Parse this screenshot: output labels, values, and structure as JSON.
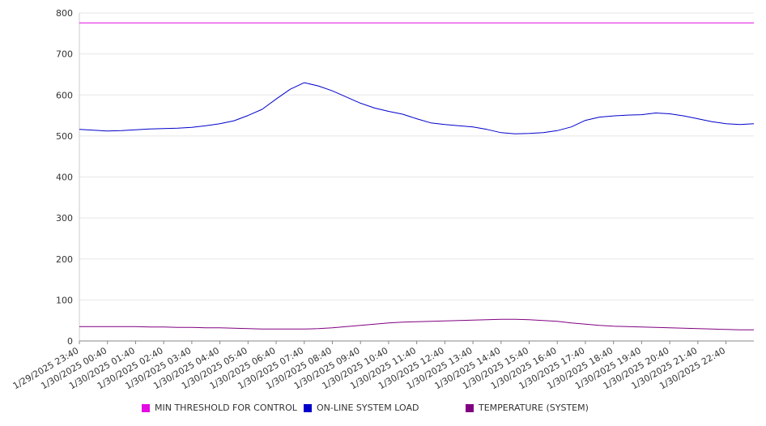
{
  "chart_data": {
    "type": "line",
    "title": "",
    "xlabel": "",
    "ylabel": "",
    "ylim": [
      0,
      800
    ],
    "yticks": [
      0,
      100,
      200,
      300,
      400,
      500,
      600,
      700,
      800
    ],
    "grid": true,
    "legend_position": "bottom",
    "x_tick_labels": [
      "1/29/2025 23:40",
      "1/30/2025 00:40",
      "1/30/2025 01:40",
      "1/30/2025 02:40",
      "1/30/2025 03:40",
      "1/30/2025 04:40",
      "1/30/2025 05:40",
      "1/30/2025 06:40",
      "1/30/2025 07:40",
      "1/30/2025 08:40",
      "1/30/2025 09:40",
      "1/30/2025 10:40",
      "1/30/2025 11:40",
      "1/30/2025 12:40",
      "1/30/2025 13:40",
      "1/30/2025 14:40",
      "1/30/2025 15:40",
      "1/30/2025 16:40",
      "1/30/2025 17:40",
      "1/30/2025 18:40",
      "1/30/2025 19:40",
      "1/30/2025 20:40",
      "1/30/2025 21:40",
      "1/30/2025 22:40"
    ],
    "x": [
      "1/29/2025 23:40",
      "1/30/2025 00:10",
      "1/30/2025 00:40",
      "1/30/2025 01:10",
      "1/30/2025 01:40",
      "1/30/2025 02:10",
      "1/30/2025 02:40",
      "1/30/2025 03:10",
      "1/30/2025 03:40",
      "1/30/2025 04:10",
      "1/30/2025 04:40",
      "1/30/2025 05:10",
      "1/30/2025 05:40",
      "1/30/2025 06:10",
      "1/30/2025 06:40",
      "1/30/2025 07:10",
      "1/30/2025 07:40",
      "1/30/2025 08:10",
      "1/30/2025 08:40",
      "1/30/2025 09:10",
      "1/30/2025 09:40",
      "1/30/2025 10:10",
      "1/30/2025 10:40",
      "1/30/2025 11:10",
      "1/30/2025 11:40",
      "1/30/2025 12:10",
      "1/30/2025 12:40",
      "1/30/2025 13:10",
      "1/30/2025 13:40",
      "1/30/2025 14:10",
      "1/30/2025 14:40",
      "1/30/2025 15:10",
      "1/30/2025 15:40",
      "1/30/2025 16:10",
      "1/30/2025 16:40",
      "1/30/2025 17:10",
      "1/30/2025 17:40",
      "1/30/2025 18:10",
      "1/30/2025 18:40",
      "1/30/2025 19:10",
      "1/30/2025 19:40",
      "1/30/2025 20:10",
      "1/30/2025 20:40",
      "1/30/2025 21:10",
      "1/30/2025 21:40",
      "1/30/2025 22:10",
      "1/30/2025 22:40",
      "1/30/2025 23:10",
      "1/30/2025 23:40"
    ],
    "series": [
      {
        "name": "MIN THRESHOLD FOR CONTROL",
        "color": "#e40ae4",
        "values": [
          776,
          776,
          776,
          776,
          776,
          776,
          776,
          776,
          776,
          776,
          776,
          776,
          776,
          776,
          776,
          776,
          776,
          776,
          776,
          776,
          776,
          776,
          776,
          776,
          776,
          776,
          776,
          776,
          776,
          776,
          776,
          776,
          776,
          776,
          776,
          776,
          776,
          776,
          776,
          776,
          776,
          776,
          776,
          776,
          776,
          776,
          776,
          776,
          776
        ]
      },
      {
        "name": "ON-LINE SYSTEM LOAD",
        "color": "#0000cc",
        "values": [
          516,
          514,
          512,
          513,
          515,
          517,
          518,
          519,
          521,
          525,
          530,
          537,
          550,
          565,
          590,
          614,
          630,
          622,
          610,
          595,
          580,
          568,
          560,
          553,
          542,
          532,
          528,
          525,
          522,
          516,
          508,
          505,
          506,
          508,
          513,
          522,
          538,
          546,
          549,
          551,
          552,
          556,
          554,
          549,
          542,
          535,
          530,
          528,
          530
        ]
      },
      {
        "name": "TEMPERATURE (SYSTEM)",
        "color": "#800080",
        "values": [
          35,
          35,
          35,
          35,
          35,
          34,
          34,
          33,
          33,
          32,
          32,
          31,
          30,
          29,
          29,
          29,
          29,
          30,
          32,
          35,
          38,
          41,
          44,
          46,
          47,
          48,
          49,
          50,
          51,
          52,
          53,
          53,
          52,
          50,
          48,
          44,
          41,
          38,
          36,
          35,
          34,
          33,
          32,
          31,
          30,
          29,
          28,
          27,
          27
        ]
      }
    ]
  }
}
